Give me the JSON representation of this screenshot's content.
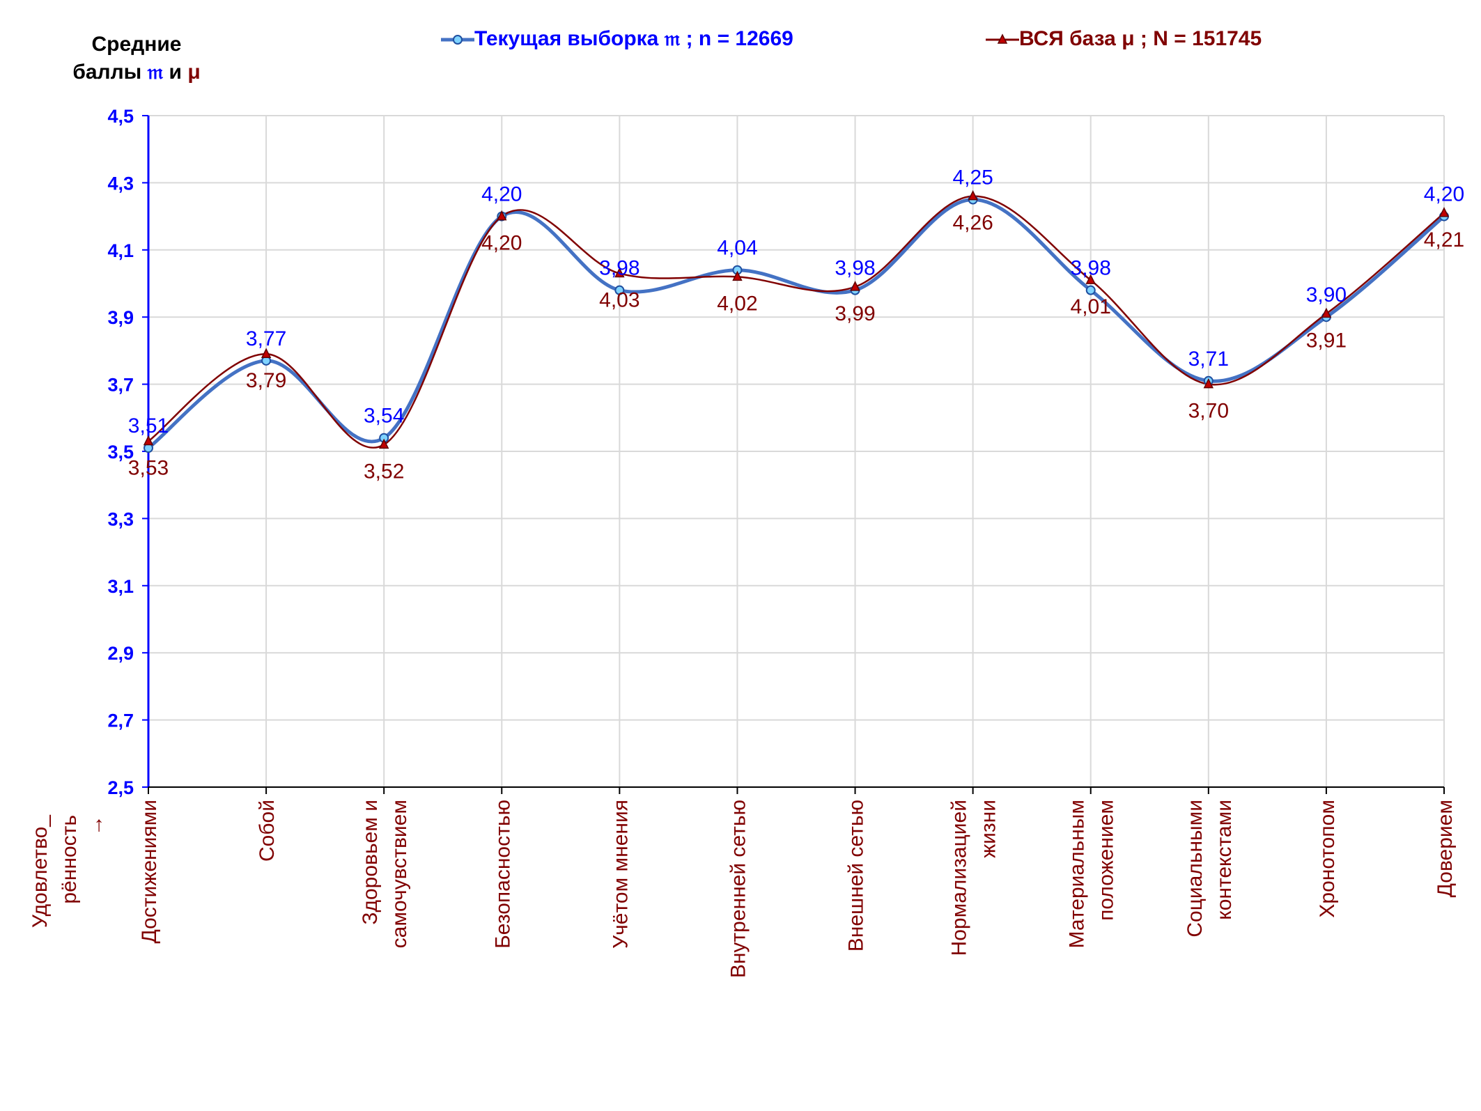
{
  "chart_data": {
    "type": "line",
    "smooth": true,
    "ylabel_line1": "Средние",
    "ylabel_line2": "баллы",
    "ylabel_sym_current": "𝔪",
    "ylabel_and": "и",
    "ylabel_sym_base": "μ",
    "xlabel_line1": "Удовлетво_",
    "xlabel_line2": "рённость",
    "xlabel_arrow": "→",
    "ylim": [
      2.5,
      4.5
    ],
    "yticks": [
      "2,5",
      "2,7",
      "2,9",
      "3,1",
      "3,3",
      "3,5",
      "3,7",
      "3,9",
      "4,1",
      "4,3",
      "4,5"
    ],
    "grid": true,
    "legend_position": "top",
    "categories": [
      [
        "Достижениями"
      ],
      [
        "Собой"
      ],
      [
        "Здоровьем и",
        "самочувствием"
      ],
      [
        "Безопасностью"
      ],
      [
        "Учётом мнения"
      ],
      [
        "Внутренней сетью"
      ],
      [
        "Внешней сетью"
      ],
      [
        "Нормализацией",
        "жизни"
      ],
      [
        "Материальным",
        "положением"
      ],
      [
        "Социальными",
        "контекстами"
      ],
      [
        "Хронотопом"
      ],
      [
        "Доверием"
      ]
    ],
    "series": [
      {
        "name": "Текущая выборка 𝔪 ; n = 12669",
        "color": "#4472c4",
        "label_color": "#0000ff",
        "marker": "circle",
        "values": [
          3.51,
          3.77,
          3.54,
          4.2,
          3.98,
          4.04,
          3.98,
          4.25,
          3.98,
          3.71,
          3.9,
          4.2
        ],
        "labels": [
          "3,51",
          "3,77",
          "3,54",
          "4,20",
          "3,98",
          "4,04",
          "3,98",
          "4,25",
          "3,98",
          "3,71",
          "3,90",
          "4,20"
        ]
      },
      {
        "name": "ВСЯ база μ ; N = 151745",
        "color": "#800000",
        "label_color": "#800000",
        "marker": "triangle",
        "values": [
          3.53,
          3.79,
          3.52,
          4.2,
          4.03,
          4.02,
          3.99,
          4.26,
          4.01,
          3.7,
          3.91,
          4.21
        ],
        "labels": [
          "3,53",
          "3,79",
          "3,52",
          "4,20",
          "4,03",
          "4,02",
          "3,99",
          "4,26",
          "4,01",
          "3,70",
          "3,91",
          "4,21"
        ]
      }
    ]
  }
}
